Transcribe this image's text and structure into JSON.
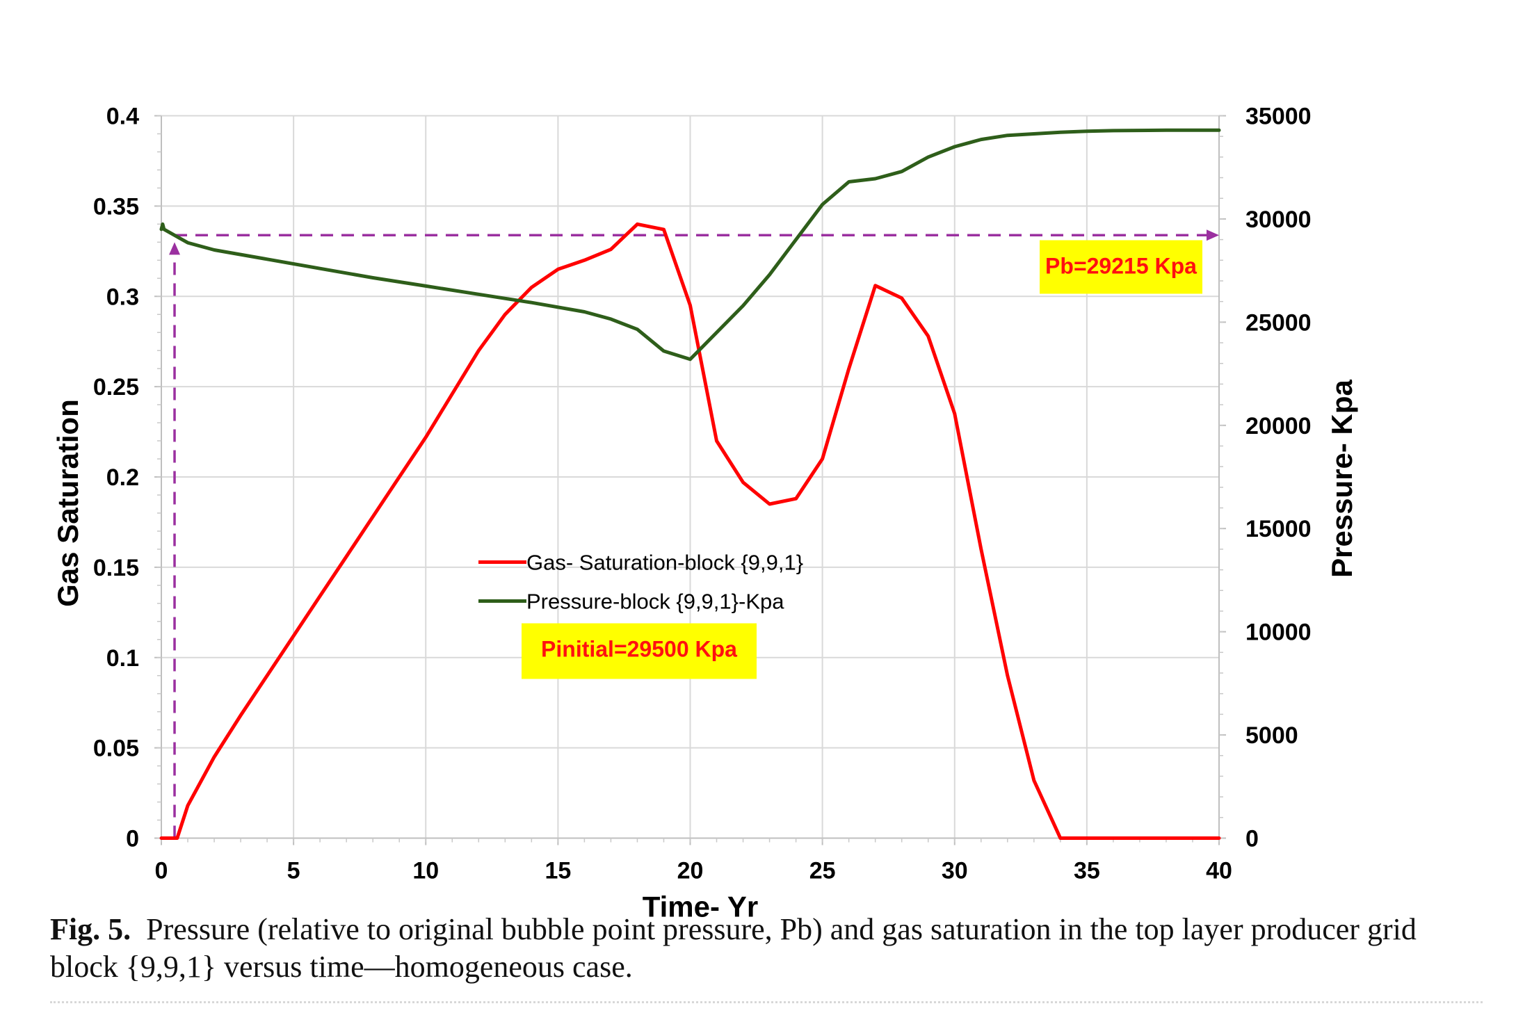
{
  "chart_data": {
    "type": "line",
    "xlabel": "Time- Yr",
    "ylabel_left": "Gas Saturation",
    "ylabel_right": "Pressure- Kpa",
    "xlim": [
      0,
      40
    ],
    "ylim_left": [
      0,
      0.4
    ],
    "ylim_right": [
      0,
      35000
    ],
    "x_ticks": [
      "0",
      "5",
      "10",
      "15",
      "20",
      "25",
      "30",
      "35",
      "40"
    ],
    "y_left_ticks": [
      "0",
      "0.05",
      "0.1",
      "0.15",
      "0.2",
      "0.25",
      "0.3",
      "0.35",
      "0.4"
    ],
    "y_right_ticks": [
      "0",
      "5000",
      "10000",
      "15000",
      "20000",
      "25000",
      "30000",
      "35000"
    ],
    "grid": true,
    "legend_position": "center",
    "series": [
      {
        "name": "Gas- Saturation-block {9,9,1}",
        "axis": "left",
        "color": "#ff0000",
        "x": [
          0,
          0.6,
          1,
          2,
          3,
          4,
          5,
          6,
          7,
          8,
          9,
          10,
          11,
          12,
          13,
          14,
          15,
          16,
          17,
          18,
          19,
          20,
          21,
          22,
          23,
          24,
          25,
          26,
          27,
          28,
          29,
          30,
          31,
          32,
          33,
          34,
          35,
          36,
          37,
          38,
          39,
          40
        ],
        "values": [
          0,
          0,
          0.018,
          0.045,
          0.068,
          0.09,
          0.112,
          0.134,
          0.156,
          0.178,
          0.2,
          0.222,
          0.246,
          0.27,
          0.29,
          0.305,
          0.315,
          0.32,
          0.326,
          0.34,
          0.337,
          0.295,
          0.22,
          0.197,
          0.185,
          0.188,
          0.21,
          0.26,
          0.306,
          0.299,
          0.278,
          0.235,
          0.16,
          0.09,
          0.032,
          0,
          0,
          0,
          0,
          0,
          0,
          0
        ]
      },
      {
        "name": "Pressure-block {9,9,1}-Kpa",
        "axis": "right",
        "color": "#2e5e1a",
        "x": [
          0,
          0.05,
          0.1,
          1,
          2,
          4,
          6,
          8,
          10,
          12,
          14,
          16,
          17,
          18,
          19,
          20,
          21,
          22,
          23,
          24,
          25,
          26,
          27,
          28,
          29,
          30,
          31,
          32,
          34,
          35,
          36,
          38,
          40
        ],
        "values": [
          29500,
          29750,
          29500,
          28850,
          28500,
          28050,
          27600,
          27150,
          26750,
          26350,
          25950,
          25500,
          25150,
          24650,
          23600,
          23200,
          24500,
          25800,
          27300,
          29000,
          30700,
          31800,
          31950,
          32300,
          33000,
          33500,
          33850,
          34050,
          34200,
          34250,
          34280,
          34300,
          34300
        ]
      }
    ],
    "reference_lines": [
      {
        "name": "Pb dashed line",
        "axis": "right",
        "y": 29215,
        "x_from": 0.5,
        "x_to": 40,
        "color": "#9b30a0"
      },
      {
        "name": "Pinitial vertical arrow",
        "axis": "left",
        "x": 0.5,
        "y_from": 0,
        "y_to": 0.33,
        "color": "#9b30a0"
      }
    ],
    "annotations": [
      {
        "text": "Pb=29215 Kpa",
        "highlight": "#ffff00"
      },
      {
        "text": "Pinitial=29500 Kpa",
        "highlight": "#ffff00"
      }
    ]
  },
  "caption": {
    "label": "Fig. 5",
    "text": "Pressure (relative to original bubble point pressure, Pb) and gas saturation in the top layer producer grid block {9,9,1} versus time—homogeneous case."
  }
}
